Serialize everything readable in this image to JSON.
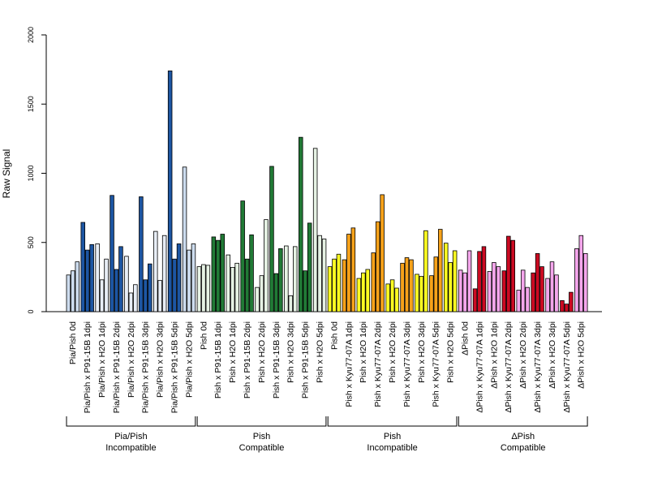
{
  "chart_data": {
    "type": "bar",
    "title": "",
    "xlabel": "",
    "ylabel": "Raw Signal",
    "ylim": [
      0,
      2000
    ],
    "yticks": [
      0,
      500,
      1000,
      1500,
      2000
    ],
    "grid": false,
    "categories": [
      "Pia/Pish 0d",
      "Pia/Pish x P91-15B 1dpi",
      "Pia/Pish x H2O 1dpi",
      "Pia/Pish x P91-15B 2dpi",
      "Pia/Pish x H2O 2dpi",
      "Pia/Pish x P91-15B 3dpi",
      "Pia/Pish x H2O 3dpi",
      "Pia/Pish x P91-15B 5dpi",
      "Pia/Pish x H2O 5dpi",
      "Pish 0d",
      "Pish x P91-15B 1dpi",
      "Pish x H2O 1dpi",
      "Pish x P91-15B 2dpi",
      "Pish x H2O 2dpi",
      "Pish x P91-15B 3dpi",
      "Pish x H2O 3dpi",
      "Pish x P91-15B 5dpi",
      "Pish x H2O 5dpi",
      "Pish 0d",
      "Pish x Kyu77-07A 1dpi",
      "Pish x H2O 1dpi",
      "Pish x Kyu77-07A 2dpi",
      "Pish x H2O 2dpi",
      "Pish x Kyu77-07A 3dpi",
      "Pish x H2O 3dpi",
      "Pish x Kyu77-07A 5dpi",
      "Pish x H2O 5dpi",
      "ΔPish 0d",
      "ΔPish x Kyu77-07A 1dpi",
      "ΔPish x H2O 1dpi",
      "ΔPish x Kyu77-07A 2dpi",
      "ΔPish x H2O 2dpi",
      "ΔPish x Kyu77-07A 3dpi",
      "ΔPish x H2O 3dpi",
      "ΔPish x Kyu77-07A 5dpi",
      "ΔPish x H2O 5dpi"
    ],
    "replicates_per_category": 3,
    "values": [
      [
        265,
        295,
        360
      ],
      [
        645,
        445,
        485
      ],
      [
        490,
        230,
        380
      ],
      [
        840,
        305,
        470
      ],
      [
        400,
        135,
        195
      ],
      [
        830,
        230,
        345
      ],
      [
        580,
        225,
        550
      ],
      [
        1740,
        380,
        490
      ],
      [
        1045,
        445,
        490
      ],
      [
        325,
        340,
        335
      ],
      [
        540,
        515,
        560
      ],
      [
        410,
        320,
        350
      ],
      [
        800,
        380,
        555
      ],
      [
        175,
        260,
        665
      ],
      [
        1050,
        275,
        455
      ],
      [
        475,
        115,
        470
      ],
      [
        1260,
        295,
        640
      ],
      [
        1180,
        550,
        525
      ],
      [
        325,
        380,
        415
      ],
      [
        375,
        560,
        605
      ],
      [
        240,
        280,
        305
      ],
      [
        425,
        650,
        845
      ],
      [
        200,
        230,
        170
      ],
      [
        350,
        390,
        375
      ],
      [
        270,
        255,
        585
      ],
      [
        260,
        395,
        595
      ],
      [
        495,
        355,
        440
      ],
      [
        300,
        280,
        440
      ],
      [
        165,
        435,
        470
      ],
      [
        290,
        355,
        325
      ],
      [
        295,
        545,
        515
      ],
      [
        155,
        300,
        175
      ],
      [
        280,
        420,
        325
      ],
      [
        240,
        360,
        265
      ],
      [
        80,
        55,
        140
      ],
      [
        455,
        550,
        420
      ]
    ],
    "category_colors": [
      "#cddcee",
      "#1d56a3",
      "#e8eef6",
      "#1d56a3",
      "#e8eef6",
      "#1d56a3",
      "#e8eef6",
      "#1d56a3",
      "#cddcee",
      "#e6f2e4",
      "#217a36",
      "#e6f2e4",
      "#217a36",
      "#e6f2e4",
      "#217a36",
      "#e6f2e4",
      "#217a36",
      "#e6f2e4",
      "#ffff22",
      "#f7a21a",
      "#ffff22",
      "#f7a21a",
      "#ffff22",
      "#f7a21a",
      "#ffff22",
      "#f7a21a",
      "#ffff22",
      "#f4a6ec",
      "#cc0a22",
      "#f4a6ec",
      "#cc0a22",
      "#f4a6ec",
      "#cc0a22",
      "#f4a6ec",
      "#cc0a22",
      "#f4a6ec"
    ],
    "groups": [
      {
        "label_line1": "Pia/Pish",
        "label_line2": "Incompatible",
        "start": 0,
        "end": 8
      },
      {
        "label_line1": "Pish",
        "label_line2": "Compatible",
        "start": 9,
        "end": 17
      },
      {
        "label_line1": "Pish",
        "label_line2": "Incompatible",
        "start": 18,
        "end": 26
      },
      {
        "label_line1": "ΔPish",
        "label_line2": "Compatible",
        "start": 27,
        "end": 35
      }
    ],
    "legend": "none"
  }
}
